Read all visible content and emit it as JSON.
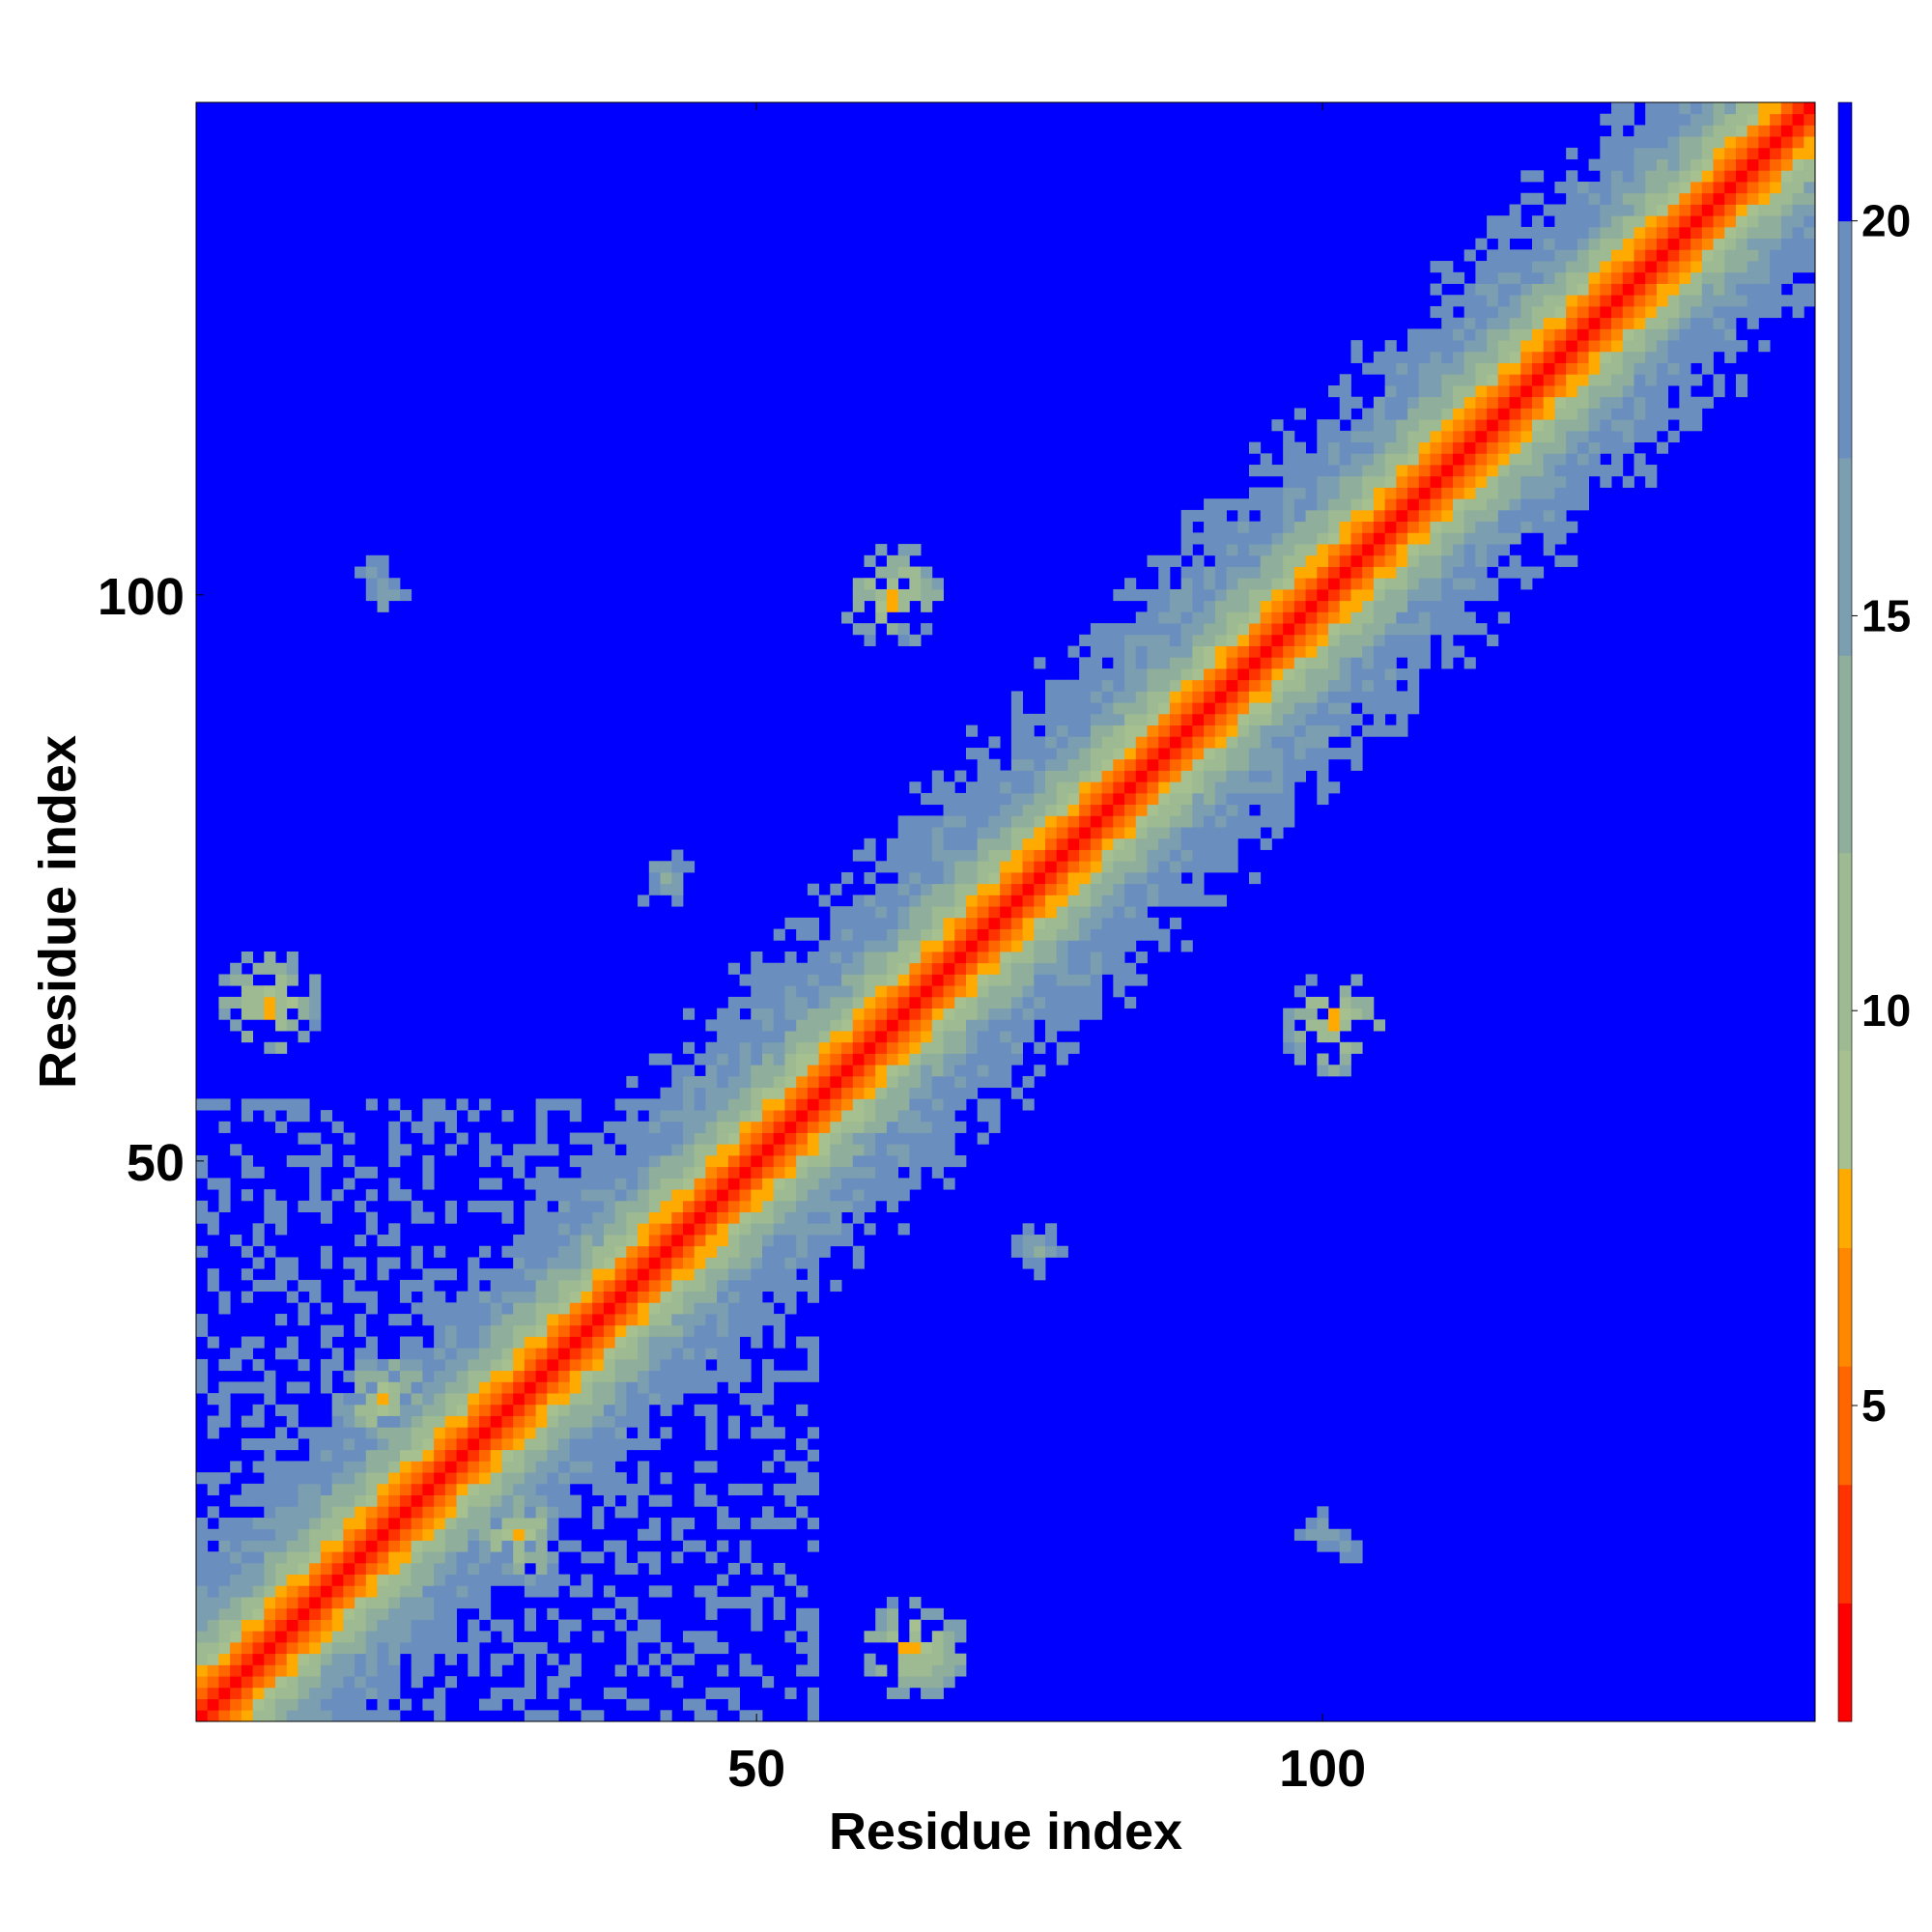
{
  "chart_data": {
    "type": "heatmap",
    "title": "",
    "xlabel": "Residue index",
    "ylabel": "Residue index",
    "n_residues": 143,
    "x_ticks": [
      50,
      100
    ],
    "y_ticks": [
      50,
      100
    ],
    "colorbar": {
      "ticks": [
        5,
        10,
        15,
        20
      ],
      "range": [
        1,
        21.5
      ],
      "colors": [
        {
          "upto": 2.5,
          "color": "#ff0000"
        },
        {
          "upto": 4.0,
          "color": "#ff3300"
        },
        {
          "upto": 5.5,
          "color": "#ff6600"
        },
        {
          "upto": 7.0,
          "color": "#ff8800"
        },
        {
          "upto": 8.0,
          "color": "#ffaa00"
        },
        {
          "upto": 9.5,
          "color": "#a6c090"
        },
        {
          "upto": 12.0,
          "color": "#9dba92"
        },
        {
          "upto": 14.5,
          "color": "#8fae9c"
        },
        {
          "upto": 17.0,
          "color": "#7b9eb0"
        },
        {
          "upto": 20.0,
          "color": "#6a8fbf"
        },
        {
          "upto": 99,
          "color": "#0000ff"
        }
      ]
    },
    "contact_clusters": [
      {
        "x": 62,
        "y": 100,
        "min_value": 5
      },
      {
        "x": 101,
        "y": 62,
        "min_value": 5
      },
      {
        "x": 7,
        "y": 64,
        "min_value": 5
      },
      {
        "x": 64,
        "y": 7,
        "min_value": 5
      },
      {
        "x": 29,
        "y": 17,
        "min_value": 6
      },
      {
        "x": 17,
        "y": 29,
        "min_value": 6
      },
      {
        "x": 42,
        "y": 75,
        "min_value": 13
      },
      {
        "x": 75,
        "y": 42,
        "min_value": 13
      },
      {
        "x": 17,
        "y": 100,
        "min_value": 14
      },
      {
        "x": 100,
        "y": 17,
        "min_value": 14
      },
      {
        "x": 102,
        "y": 16,
        "min_value": 15
      },
      {
        "x": 16,
        "y": 102,
        "min_value": 15
      }
    ]
  }
}
